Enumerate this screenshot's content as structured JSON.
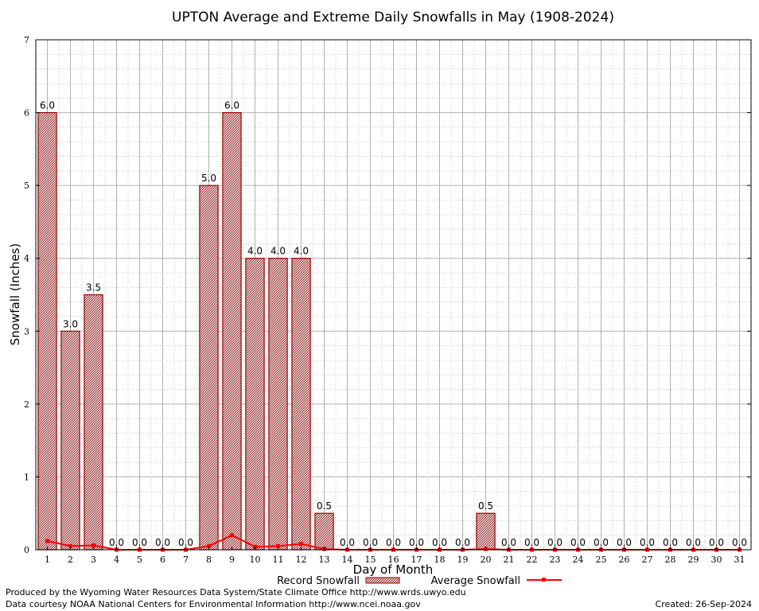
{
  "chart_data": {
    "type": "bar",
    "title": "UPTON Average and Extreme Daily Snowfalls in May (1908-2024)",
    "xlabel": "Day of Month",
    "ylabel": "Snowfall (Inches)",
    "ylim": [
      0,
      7
    ],
    "yticks": [
      "0",
      "1",
      "2",
      "3",
      "4",
      "5",
      "6",
      "7"
    ],
    "categories": [
      "1",
      "2",
      "3",
      "4",
      "5",
      "6",
      "7",
      "8",
      "9",
      "10",
      "11",
      "12",
      "13",
      "14",
      "15",
      "16",
      "17",
      "18",
      "19",
      "20",
      "21",
      "22",
      "23",
      "24",
      "25",
      "26",
      "27",
      "28",
      "29",
      "30",
      "31"
    ],
    "grid": true,
    "legend_position": "bottom",
    "series": [
      {
        "name": "Record Snowfall",
        "kind": "bar",
        "color": "#990000",
        "values": [
          6.0,
          3.0,
          3.5,
          0.0,
          0.0,
          0.0,
          0.0,
          5.0,
          6.0,
          4.0,
          4.0,
          4.0,
          0.5,
          0.0,
          0.0,
          0.0,
          0.0,
          0.0,
          0.0,
          0.5,
          0.0,
          0.0,
          0.0,
          0.0,
          0.0,
          0.0,
          0.0,
          0.0,
          0.0,
          0.0,
          0.0
        ],
        "labels": [
          "6.0",
          "3.0",
          "3.5",
          "0.0",
          "0.0",
          "0.0",
          "0.0",
          "5.0",
          "6.0",
          "4.0",
          "4.0",
          "4.0",
          "0.5",
          "0.0",
          "0.0",
          "0.0",
          "0.0",
          "0.0",
          "0.0",
          "0.5",
          "0.0",
          "0.0",
          "0.0",
          "0.0",
          "0.0",
          "0.0",
          "0.0",
          "0.0",
          "0.0",
          "0.0",
          "0.0"
        ]
      },
      {
        "name": "Average Snowfall",
        "kind": "line",
        "color": "#ff0000",
        "values": [
          0.12,
          0.05,
          0.06,
          0.0,
          0.0,
          0.0,
          0.0,
          0.05,
          0.2,
          0.04,
          0.05,
          0.08,
          0.01,
          0.0,
          0.0,
          0.0,
          0.0,
          0.0,
          0.0,
          0.01,
          0.0,
          0.0,
          0.0,
          0.0,
          0.0,
          0.0,
          0.0,
          0.0,
          0.0,
          0.0,
          0.0
        ]
      }
    ]
  },
  "footer": {
    "line1": "Produced by the Wyoming Water Resources Data System/State Climate Office http://www.wrds.uwyo.edu",
    "line2": "Data courtesy NOAA National Centers for Environmental Information http://www.ncei.noaa.gov",
    "created": "Created:  26-Sep-2024"
  }
}
